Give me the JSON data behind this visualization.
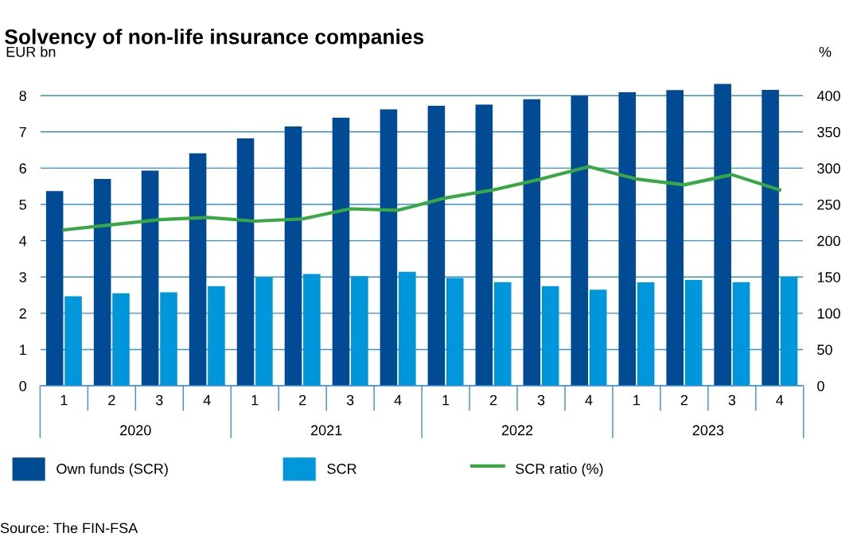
{
  "chart_data": {
    "type": "bar",
    "title": "Solvency of non-life insurance companies",
    "ylabel": "EUR bn",
    "y2label": "%",
    "categories": [
      "1",
      "2",
      "3",
      "4",
      "1",
      "2",
      "3",
      "4",
      "1",
      "2",
      "3",
      "4",
      "1",
      "2",
      "3",
      "4"
    ],
    "series": [
      {
        "name": "Own funds (SCR)",
        "color": "#004b93",
        "values": [
          5.37,
          5.7,
          5.93,
          6.41,
          6.82,
          7.15,
          7.39,
          7.62,
          7.72,
          7.75,
          7.9,
          8.0,
          8.09,
          8.15,
          8.32,
          8.16
        ]
      },
      {
        "name": "SCR",
        "color": "#0096dc",
        "values": [
          2.47,
          2.55,
          2.58,
          2.75,
          2.99,
          3.08,
          3.02,
          3.14,
          2.97,
          2.86,
          2.75,
          2.65,
          2.85,
          2.92,
          2.86,
          3.01
        ]
      },
      {
        "name": "SCR ratio (%)",
        "type": "line",
        "axis": "y2",
        "color": "#38a845",
        "values": [
          215,
          222,
          229,
          232,
          227,
          230,
          244,
          242,
          259,
          270,
          285,
          302,
          285,
          277,
          291,
          270
        ]
      }
    ],
    "ylim": [
      0,
      8.4
    ],
    "yticks": [
      0,
      1,
      2,
      3,
      4,
      5,
      6,
      7,
      8
    ],
    "y2lim": [
      0,
      420
    ],
    "y2ticks": [
      0,
      50,
      100,
      150,
      200,
      250,
      300,
      350,
      400
    ],
    "grid": "y",
    "legend": "bottom",
    "annotations": [
      "2020",
      "2021",
      "2022",
      "2023",
      "Source: The FIN-FSA"
    ]
  }
}
